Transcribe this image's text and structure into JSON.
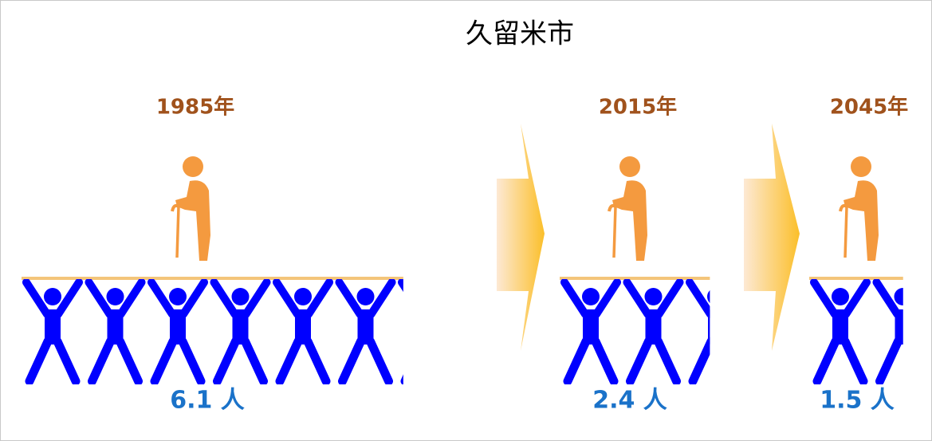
{
  "chart_data": {
    "type": "pictograph",
    "title": "久留米市",
    "categories": [
      "1985年",
      "2015年",
      "2045年"
    ],
    "values": [
      6.1,
      2.4,
      1.5
    ],
    "value_labels": [
      "6.1 人",
      "2.4 人",
      "1.5 人"
    ],
    "color": "#0000ff"
  }
}
